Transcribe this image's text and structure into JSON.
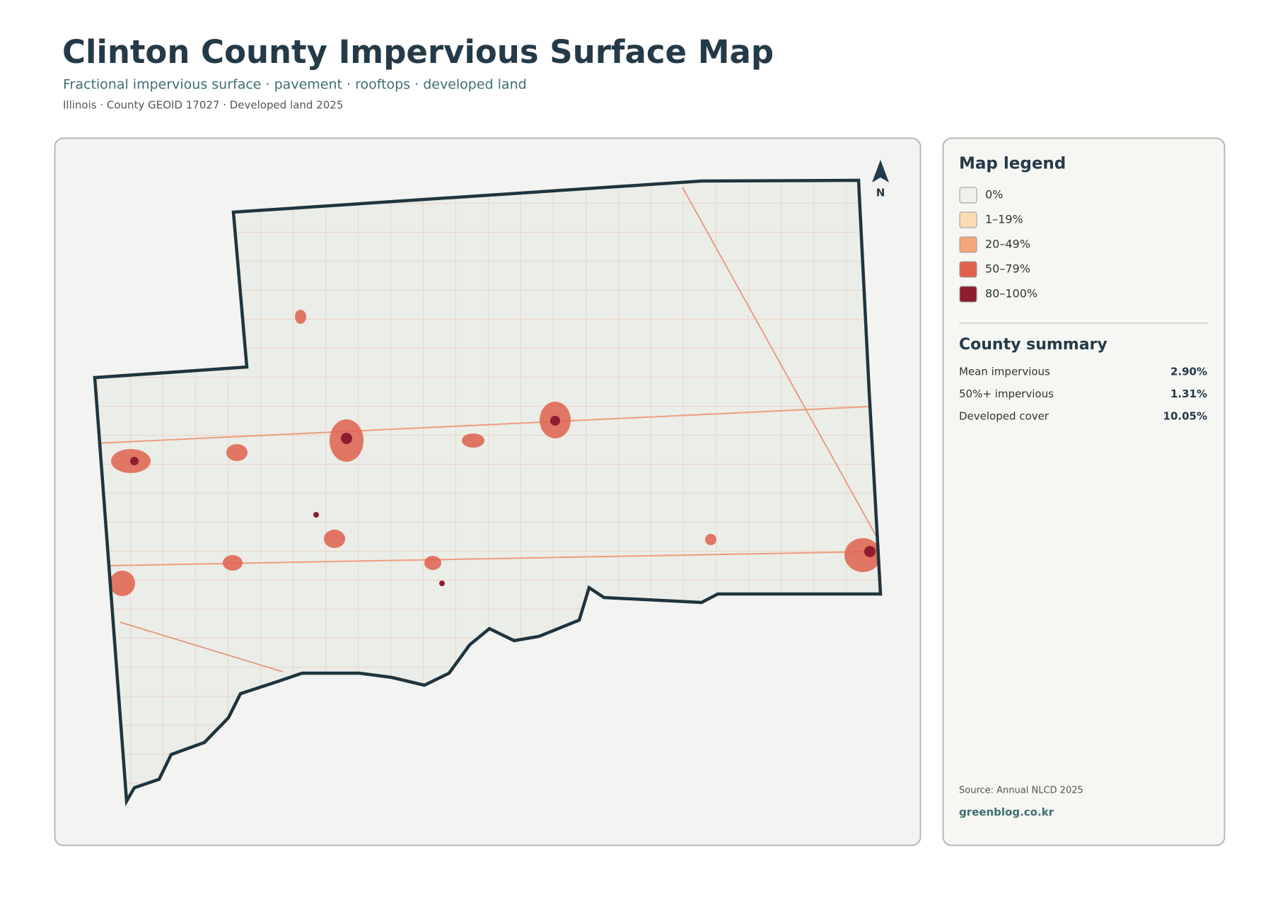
{
  "header": {
    "title": "Clinton County Impervious Surface Map",
    "subtitle": "Fractional impervious surface · pavement · rooftops · developed land",
    "meta": "Illinois · County GEOID 17027 · Developed land 2025"
  },
  "map": {
    "north_label": "N"
  },
  "legend": {
    "title": "Map legend",
    "items": [
      {
        "label": "0%",
        "color": "#efefec"
      },
      {
        "label": "1–19%",
        "color": "#fddcb5"
      },
      {
        "label": "20–49%",
        "color": "#f4a67a"
      },
      {
        "label": "50–79%",
        "color": "#e0604c"
      },
      {
        "label": "80–100%",
        "color": "#8f1d2f"
      }
    ]
  },
  "summary": {
    "title": "County summary",
    "rows": [
      {
        "label": "Mean impervious",
        "value": "2.90%"
      },
      {
        "label": "50%+ impervious",
        "value": "1.31%"
      },
      {
        "label": "Developed cover",
        "value": "10.05%"
      }
    ]
  },
  "footer": {
    "source": "Source: Annual NLCD 2025",
    "site": "greenblog.co.kr"
  }
}
